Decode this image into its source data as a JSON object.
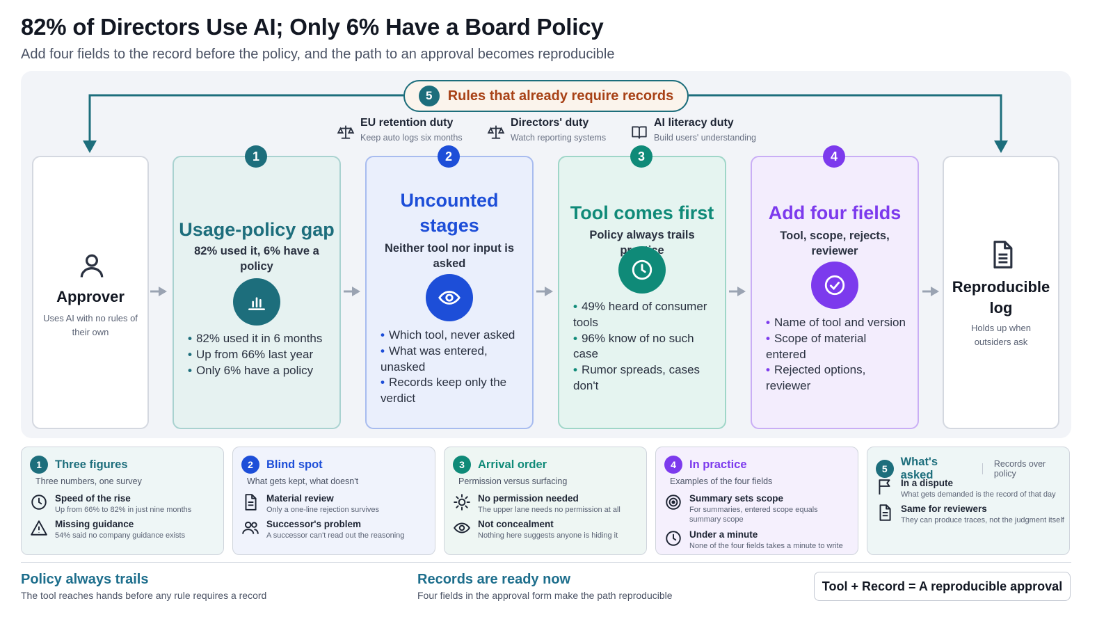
{
  "header": {
    "title": "82% of Directors Use AI; Only 6% Have a Board Policy",
    "subtitle": "Add four fields to the record before the policy, and the path to an approval becomes reproducible"
  },
  "rules": {
    "num": "5",
    "label": "Rules that already require records"
  },
  "duties": [
    {
      "title": "EU retention duty",
      "desc": "Keep auto logs six months",
      "icon": "scale-icon"
    },
    {
      "title": "Directors' duty",
      "desc": "Watch reporting systems",
      "icon": "scale-icon"
    },
    {
      "title": "AI literacy duty",
      "desc": "Build users' understanding",
      "icon": "book-icon"
    }
  ],
  "approver": {
    "title": "Approver",
    "desc": "Uses AI with no rules of their own",
    "icon": "user-icon"
  },
  "log": {
    "title": "Reproducible log",
    "desc": "Holds up when outsiders ask",
    "icon": "document-icon"
  },
  "stages": [
    {
      "num": "1",
      "title": "Usage-policy gap",
      "sub": "82% used it, 6% have a policy",
      "icon": "bar-chart-icon",
      "bullets": [
        "82% used it in 6 months",
        "Up from 66% last year",
        "Only 6% have a policy"
      ]
    },
    {
      "num": "2",
      "title": "Uncounted stages",
      "sub": "Neither tool nor input is asked",
      "icon": "eye-icon",
      "bullets": [
        "Which tool, never asked",
        "What was entered, unasked",
        "Records keep only the verdict"
      ]
    },
    {
      "num": "3",
      "title": "Tool comes first",
      "sub": "Policy always trails practice",
      "icon": "clock-icon",
      "bullets": [
        "49% heard of consumer tools",
        "96% know of no such case",
        "Rumor spreads, cases don't"
      ]
    },
    {
      "num": "4",
      "title": "Add four fields",
      "sub": "Tool, scope, rejects, reviewer",
      "icon": "check-circle-icon",
      "bullets": [
        "Name of tool and version",
        "Scope of material entered",
        "Rejected options, reviewer"
      ]
    }
  ],
  "bottom": [
    {
      "num": "1",
      "title": "Three figures",
      "sub": "Three numbers, one survey",
      "items": [
        {
          "title": "Speed of the rise",
          "desc": "Up from 66% to 82% in just nine months",
          "icon": "clock-icon"
        },
        {
          "title": "Missing guidance",
          "desc": "54% said no company guidance exists",
          "icon": "warning-icon"
        }
      ]
    },
    {
      "num": "2",
      "title": "Blind spot",
      "sub": "What gets kept, what doesn't",
      "items": [
        {
          "title": "Material review",
          "desc": "Only a one-line rejection survives",
          "icon": "document-icon"
        },
        {
          "title": "Successor's problem",
          "desc": "A successor can't read out the reasoning",
          "icon": "users-icon"
        }
      ]
    },
    {
      "num": "3",
      "title": "Arrival order",
      "sub": "Permission versus surfacing",
      "items": [
        {
          "title": "No permission needed",
          "desc": "The upper lane needs no permission at all",
          "icon": "sun-icon"
        },
        {
          "title": "Not concealment",
          "desc": "Nothing here suggests anyone is hiding it",
          "icon": "eye-icon"
        }
      ]
    },
    {
      "num": "4",
      "title": "In practice",
      "sub": "Examples of the four fields",
      "items": [
        {
          "title": "Summary sets scope",
          "desc": "For summaries, entered scope equals summary scope",
          "icon": "target-icon"
        },
        {
          "title": "Under a minute",
          "desc": "None of the four fields takes a minute to write",
          "icon": "clock-icon"
        }
      ]
    },
    {
      "num": "5",
      "title": "What's asked",
      "extra": "Records over policy",
      "items": [
        {
          "title": "In a dispute",
          "desc": "What gets demanded is the record of that day",
          "icon": "flag-icon"
        },
        {
          "title": "Same for reviewers",
          "desc": "They can produce traces, not the judgment itself",
          "icon": "document-icon"
        }
      ]
    }
  ],
  "footer": {
    "left_title": "Policy always trails",
    "left_desc": "The tool reaches hands before any rule requires a record",
    "mid_title": "Records are ready now",
    "mid_desc": "Four fields in the approval form make the path reproducible",
    "formula": "Tool + Record = A reproducible approval"
  },
  "colors": {
    "teal": "#1d6e7c",
    "blue": "#1d4ed8",
    "green": "#0f8a78",
    "purple": "#7c3aed",
    "orange": "#a84217"
  }
}
